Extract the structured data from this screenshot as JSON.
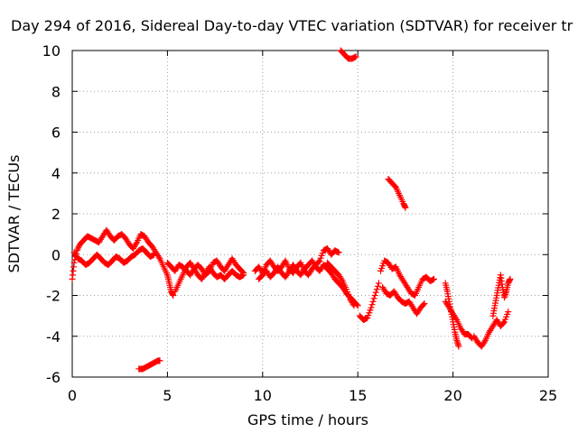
{
  "chart_data": {
    "type": "scatter",
    "title": "Day 294 of 2016, Sidereal Day-to-day VTEC variation (SDTVAR) for receiver tr",
    "xlabel": "GPS time / hours",
    "ylabel": "SDTVAR / TECUs",
    "xlim": [
      0,
      25
    ],
    "ylim": [
      -6,
      10
    ],
    "xticks": [
      "0",
      "5",
      "10",
      "15",
      "20",
      "25"
    ],
    "yticks": [
      "-6",
      "-4",
      "-2",
      "0",
      "2",
      "4",
      "6",
      "8",
      "10"
    ],
    "grid": true,
    "marker": "plus",
    "color": "#ff0000",
    "series": [
      {
        "segments": [
          [
            [
              0.0,
              -1.2
            ],
            [
              0.1,
              -0.4
            ],
            [
              0.25,
              0.2
            ],
            [
              0.4,
              0.5
            ],
            [
              0.6,
              0.7
            ],
            [
              0.8,
              0.9
            ],
            [
              1.0,
              0.8
            ],
            [
              1.2,
              0.7
            ],
            [
              1.4,
              0.6
            ],
            [
              1.6,
              0.9
            ],
            [
              1.8,
              1.2
            ],
            [
              2.0,
              0.9
            ],
            [
              2.2,
              0.7
            ],
            [
              2.4,
              0.9
            ],
            [
              2.6,
              1.0
            ],
            [
              2.8,
              0.8
            ],
            [
              3.0,
              0.5
            ],
            [
              3.2,
              0.3
            ],
            [
              3.4,
              0.6
            ],
            [
              3.6,
              1.0
            ],
            [
              3.8,
              0.9
            ],
            [
              4.0,
              0.6
            ],
            [
              4.2,
              0.4
            ],
            [
              4.4,
              0.1
            ],
            [
              4.6,
              -0.2
            ],
            [
              4.8,
              -0.6
            ],
            [
              5.0,
              -1.0
            ],
            [
              5.1,
              -1.4
            ],
            [
              5.2,
              -1.8
            ],
            [
              5.3,
              -2.0
            ]
          ],
          [
            [
              0.1,
              0.1
            ],
            [
              0.3,
              -0.2
            ],
            [
              0.5,
              -0.3
            ],
            [
              0.7,
              -0.5
            ],
            [
              0.9,
              -0.4
            ],
            [
              1.1,
              -0.2
            ],
            [
              1.3,
              0.0
            ],
            [
              1.5,
              -0.2
            ],
            [
              1.7,
              -0.4
            ],
            [
              1.9,
              -0.5
            ],
            [
              2.1,
              -0.3
            ],
            [
              2.3,
              -0.1
            ],
            [
              2.5,
              -0.2
            ],
            [
              2.7,
              -0.4
            ],
            [
              2.9,
              -0.3
            ],
            [
              3.1,
              -0.1
            ],
            [
              3.3,
              0.0
            ],
            [
              3.5,
              0.2
            ],
            [
              3.7,
              0.3
            ],
            [
              3.9,
              0.1
            ],
            [
              4.1,
              -0.1
            ],
            [
              4.3,
              0.0
            ]
          ],
          [
            [
              3.5,
              -5.6
            ],
            [
              3.7,
              -5.6
            ],
            [
              3.9,
              -5.5
            ],
            [
              4.1,
              -5.4
            ],
            [
              4.3,
              -5.3
            ],
            [
              4.5,
              -5.2
            ],
            [
              4.6,
              -5.2
            ]
          ],
          [
            [
              5.0,
              -0.4
            ],
            [
              5.2,
              -0.6
            ],
            [
              5.4,
              -0.8
            ],
            [
              5.6,
              -0.5
            ],
            [
              5.8,
              -0.6
            ],
            [
              6.0,
              -0.8
            ],
            [
              6.2,
              -1.0
            ],
            [
              6.4,
              -0.7
            ],
            [
              6.6,
              -0.5
            ],
            [
              6.8,
              -0.7
            ],
            [
              7.0,
              -1.0
            ],
            [
              7.2,
              -0.8
            ],
            [
              7.4,
              -0.4
            ],
            [
              7.6,
              -0.3
            ],
            [
              7.8,
              -0.6
            ],
            [
              8.0,
              -0.8
            ],
            [
              8.2,
              -0.5
            ],
            [
              8.4,
              -0.2
            ],
            [
              8.6,
              -0.5
            ],
            [
              8.8,
              -0.7
            ],
            [
              9.0,
              -0.9
            ]
          ],
          [
            [
              5.4,
              -1.8
            ],
            [
              5.6,
              -1.4
            ],
            [
              5.8,
              -1.0
            ],
            [
              6.0,
              -0.6
            ],
            [
              6.2,
              -0.4
            ],
            [
              6.4,
              -0.7
            ],
            [
              6.6,
              -1.0
            ],
            [
              6.8,
              -1.2
            ],
            [
              7.0,
              -0.9
            ],
            [
              7.2,
              -0.6
            ],
            [
              7.4,
              -0.9
            ],
            [
              7.6,
              -1.1
            ],
            [
              7.8,
              -1.0
            ],
            [
              8.0,
              -1.2
            ],
            [
              8.2,
              -1.0
            ],
            [
              8.4,
              -0.8
            ],
            [
              8.6,
              -1.0
            ],
            [
              8.8,
              -1.1
            ],
            [
              9.0,
              -1.0
            ]
          ],
          [
            [
              9.6,
              -0.8
            ],
            [
              9.8,
              -0.6
            ],
            [
              10.0,
              -0.9
            ],
            [
              10.2,
              -0.5
            ],
            [
              10.4,
              -0.3
            ],
            [
              10.6,
              -0.6
            ],
            [
              10.8,
              -0.8
            ],
            [
              11.0,
              -0.6
            ],
            [
              11.2,
              -0.3
            ],
            [
              11.4,
              -0.7
            ],
            [
              11.6,
              -0.9
            ],
            [
              11.8,
              -0.6
            ],
            [
              12.0,
              -0.4
            ],
            [
              12.2,
              -0.8
            ],
            [
              12.4,
              -1.0
            ],
            [
              12.6,
              -0.7
            ],
            [
              12.8,
              -0.5
            ],
            [
              13.0,
              -0.3
            ],
            [
              13.2,
              0.2
            ],
            [
              13.4,
              0.3
            ],
            [
              13.6,
              0.0
            ],
            [
              13.8,
              0.2
            ],
            [
              14.0,
              0.1
            ]
          ],
          [
            [
              9.8,
              -1.2
            ],
            [
              10.0,
              -1.0
            ],
            [
              10.2,
              -0.8
            ],
            [
              10.4,
              -1.1
            ],
            [
              10.6,
              -0.9
            ],
            [
              10.8,
              -0.6
            ],
            [
              11.0,
              -0.9
            ],
            [
              11.2,
              -1.1
            ],
            [
              11.4,
              -0.8
            ],
            [
              11.6,
              -0.5
            ],
            [
              11.8,
              -0.8
            ],
            [
              12.0,
              -1.0
            ],
            [
              12.2,
              -0.7
            ],
            [
              12.4,
              -0.5
            ],
            [
              12.6,
              -0.3
            ],
            [
              12.8,
              -0.6
            ],
            [
              13.0,
              -0.8
            ],
            [
              13.2,
              -0.5
            ],
            [
              13.4,
              -0.7
            ],
            [
              13.6,
              -0.9
            ],
            [
              13.8,
              -1.2
            ],
            [
              14.0,
              -1.4
            ],
            [
              14.2,
              -1.6
            ],
            [
              14.4,
              -1.9
            ],
            [
              14.6,
              -2.1
            ],
            [
              14.8,
              -2.3
            ],
            [
              15.0,
              -2.5
            ]
          ],
          [
            [
              13.4,
              -0.4
            ],
            [
              13.6,
              -0.6
            ],
            [
              13.8,
              -0.8
            ],
            [
              14.0,
              -1.0
            ],
            [
              14.2,
              -1.3
            ],
            [
              14.4,
              -1.7
            ],
            [
              14.6,
              -2.2
            ],
            [
              14.8,
              -2.5
            ]
          ],
          [
            [
              14.1,
              10.0
            ],
            [
              14.3,
              9.8
            ],
            [
              14.5,
              9.6
            ],
            [
              14.7,
              9.6
            ],
            [
              14.9,
              9.7
            ]
          ],
          [
            [
              15.1,
              -3.0
            ],
            [
              15.3,
              -3.2
            ],
            [
              15.5,
              -3.1
            ],
            [
              15.7,
              -2.6
            ],
            [
              15.9,
              -2.0
            ],
            [
              16.1,
              -1.4
            ]
          ],
          [
            [
              16.2,
              -0.8
            ],
            [
              16.4,
              -0.3
            ],
            [
              16.6,
              -0.4
            ],
            [
              16.8,
              -0.7
            ],
            [
              17.0,
              -0.6
            ],
            [
              17.2,
              -1.0
            ],
            [
              17.4,
              -1.3
            ],
            [
              17.6,
              -1.6
            ],
            [
              17.8,
              -1.9
            ],
            [
              18.0,
              -2.0
            ],
            [
              18.2,
              -1.6
            ],
            [
              18.4,
              -1.2
            ],
            [
              18.6,
              -1.1
            ],
            [
              18.8,
              -1.3
            ],
            [
              19.0,
              -1.2
            ]
          ],
          [
            [
              16.3,
              -1.6
            ],
            [
              16.5,
              -1.9
            ],
            [
              16.7,
              -2.0
            ],
            [
              16.9,
              -1.8
            ],
            [
              17.1,
              -2.1
            ],
            [
              17.3,
              -2.3
            ],
            [
              17.5,
              -2.4
            ],
            [
              17.7,
              -2.3
            ],
            [
              17.9,
              -2.6
            ],
            [
              18.1,
              -2.9
            ],
            [
              18.3,
              -2.6
            ],
            [
              18.5,
              -2.4
            ]
          ],
          [
            [
              16.6,
              3.7
            ],
            [
              16.8,
              3.5
            ],
            [
              17.0,
              3.3
            ],
            [
              17.2,
              2.9
            ],
            [
              17.4,
              2.5
            ],
            [
              17.5,
              2.3
            ]
          ],
          [
            [
              19.6,
              -1.4
            ],
            [
              19.7,
              -1.8
            ],
            [
              19.8,
              -2.3
            ],
            [
              19.9,
              -2.8
            ],
            [
              20.0,
              -3.3
            ],
            [
              20.1,
              -3.8
            ],
            [
              20.2,
              -4.2
            ],
            [
              20.3,
              -4.5
            ]
          ],
          [
            [
              19.6,
              -2.3
            ],
            [
              19.8,
              -2.6
            ],
            [
              20.0,
              -2.9
            ],
            [
              20.2,
              -3.2
            ],
            [
              20.4,
              -3.6
            ],
            [
              20.6,
              -3.9
            ],
            [
              20.8,
              -3.9
            ],
            [
              21.0,
              -4.1
            ]
          ],
          [
            [
              21.1,
              -4.0
            ],
            [
              21.3,
              -4.3
            ],
            [
              21.5,
              -4.5
            ],
            [
              21.7,
              -4.2
            ],
            [
              21.9,
              -3.8
            ],
            [
              22.1,
              -3.5
            ],
            [
              22.3,
              -3.2
            ],
            [
              22.5,
              -3.5
            ],
            [
              22.7,
              -3.3
            ],
            [
              22.9,
              -2.8
            ]
          ],
          [
            [
              22.1,
              -3.0
            ],
            [
              22.2,
              -2.5
            ],
            [
              22.3,
              -2.0
            ],
            [
              22.4,
              -1.5
            ],
            [
              22.5,
              -1.0
            ],
            [
              22.6,
              -1.6
            ],
            [
              22.7,
              -2.1
            ],
            [
              22.8,
              -1.8
            ],
            [
              22.9,
              -1.4
            ],
            [
              23.0,
              -1.2
            ]
          ]
        ]
      }
    ]
  }
}
